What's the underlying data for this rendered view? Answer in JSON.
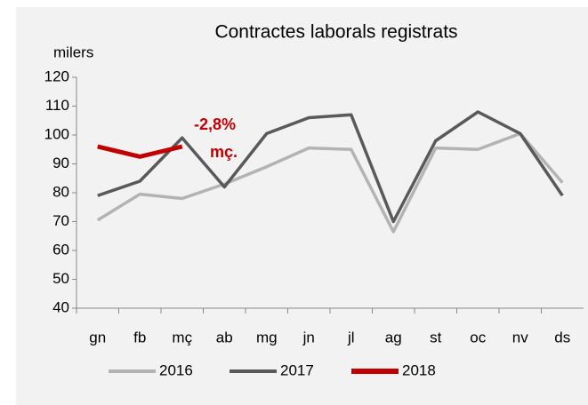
{
  "chart_data": {
    "type": "line",
    "title": "Contractes laborals registrats",
    "ylabel": "milers",
    "categories": [
      "gn",
      "fb",
      "mç",
      "ab",
      "mg",
      "jn",
      "jl",
      "ag",
      "st",
      "oc",
      "nv",
      "ds"
    ],
    "series": [
      {
        "name": "2016",
        "color": "#b3b3b3",
        "values": [
          70.5,
          79.5,
          78,
          83,
          89,
          95.5,
          95,
          66.5,
          95.5,
          95,
          100.5,
          83.5
        ]
      },
      {
        "name": "2017",
        "color": "#595959",
        "values": [
          79,
          84,
          99,
          82,
          100.5,
          106,
          107,
          70,
          98,
          108,
          100.5,
          79
        ]
      },
      {
        "name": "2018",
        "color": "#c00000",
        "values": [
          96,
          92.5,
          96,
          null,
          null,
          null,
          null,
          null,
          null,
          null,
          null,
          null
        ]
      }
    ],
    "ylim": [
      40,
      120
    ],
    "yticks": [
      40,
      50,
      60,
      70,
      80,
      90,
      100,
      110,
      120
    ],
    "grid": false,
    "annotations": [
      "-2,8%",
      "mç."
    ]
  }
}
